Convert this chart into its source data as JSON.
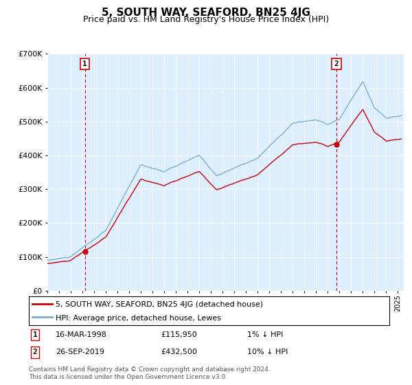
{
  "title": "5, SOUTH WAY, SEAFORD, BN25 4JG",
  "subtitle": "Price paid vs. HM Land Registry's House Price Index (HPI)",
  "legend_entry1": "5, SOUTH WAY, SEAFORD, BN25 4JG (detached house)",
  "legend_entry2": "HPI: Average price, detached house, Lewes",
  "sale1_label": "1",
  "sale1_date": "16-MAR-1998",
  "sale1_price": "£115,950",
  "sale1_hpi": "1% ↓ HPI",
  "sale2_label": "2",
  "sale2_date": "26-SEP-2019",
  "sale2_price": "£432,500",
  "sale2_hpi": "10% ↓ HPI",
  "footer": "Contains HM Land Registry data © Crown copyright and database right 2024.\nThis data is licensed under the Open Government Licence v3.0.",
  "sale1_year": 1998.21,
  "sale1_value": 115950,
  "sale2_year": 2019.74,
  "sale2_value": 432500,
  "hpi_color": "#7aadd4",
  "price_color": "#cc0000",
  "dashed_color": "#cc0000",
  "marker_color": "#cc0000",
  "background_color": "#ffffff",
  "chart_bg_color": "#ddeeff",
  "grid_color": "#ffffff",
  "ylim_min": 0,
  "ylim_max": 700000,
  "xlim_min": 1995.0,
  "xlim_max": 2025.5
}
